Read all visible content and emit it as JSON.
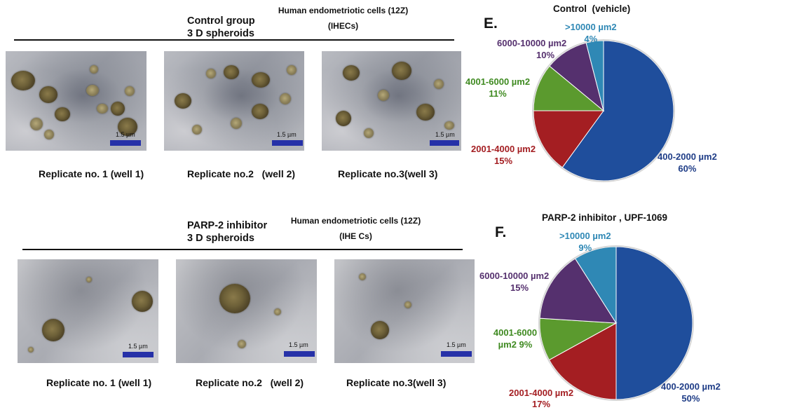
{
  "control_panel": {
    "group_line1": "Control group",
    "group_line2": "3 D spheroids",
    "cells_title": "Human endometriotic cells (12Z)",
    "cells_abbr": "(IHECs)",
    "replicates": [
      "Replicate no. 1 (well 1)",
      "Replicate no.2   (well 2)",
      "Replicate no.3(well 3)"
    ],
    "scale_label": "1.5 µm"
  },
  "inhibitor_panel": {
    "group_line1": "PARP-2 inhibitor",
    "group_line2": "3 D spheroids",
    "cells_title": "Human endometriotic cells (12Z)",
    "cells_abbr": "(IHE Cs)",
    "replicates": [
      "Replicate no. 1 (well 1)",
      "Replicate no.2   (well 2)",
      "Replicate no.3(well 3)"
    ],
    "scale_label": "1.5 µm"
  },
  "colors": {
    "400-2000": "#1f4e9c",
    "2001-4000": "#a41e22",
    "4001-6000": "#5b9a2e",
    "6000-10000": "#55306e",
    "gt10000": "#2f88b5",
    "scale_bar": "#2631a8"
  },
  "chart_data": [
    {
      "type": "pie",
      "panel_letter": "E.",
      "title": "Control  (vehicle)",
      "slices": [
        {
          "label": "400-2000 µm2",
          "pct_label": "60%",
          "value": 60
        },
        {
          "label": "2001-4000 µm2",
          "pct_label": "15%",
          "value": 15
        },
        {
          "label": "4001-6000 µm2",
          "pct_label": "11%",
          "value": 11
        },
        {
          "label": "6000-10000 µm2",
          "pct_label": "10%",
          "value": 10
        },
        {
          "label": ">10000 µm2",
          "pct_label": "4%",
          "value": 4
        }
      ]
    },
    {
      "type": "pie",
      "panel_letter": "F.",
      "title": "PARP-2 inhibitor , UPF-1069",
      "slices": [
        {
          "label": "400-2000 µm2",
          "pct_label": "50%",
          "value": 50
        },
        {
          "label": "2001-4000 µm2",
          "pct_label": "17%",
          "value": 17
        },
        {
          "label": "4001-6000 µm2 9%",
          "pct_label": "",
          "value": 9
        },
        {
          "label": "6000-10000 µm2",
          "pct_label": "15%",
          "value": 15
        },
        {
          "label": ">10000 µm2",
          "pct_label": "9%",
          "value": 9
        }
      ]
    }
  ]
}
